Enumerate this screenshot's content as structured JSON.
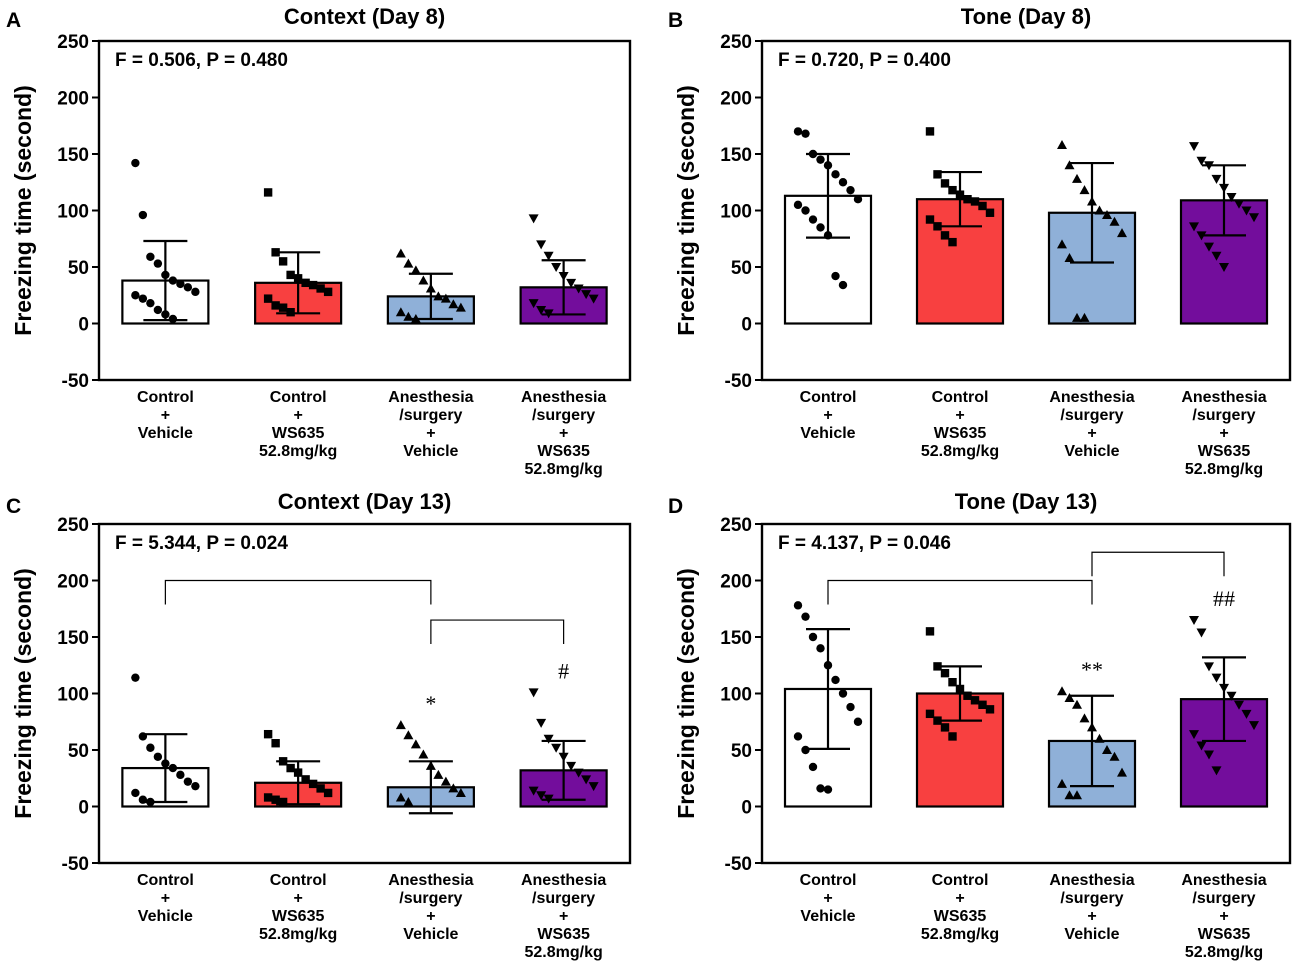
{
  "categories": [
    [
      "Control",
      "+",
      "Vehicle"
    ],
    [
      "Control",
      "+",
      "WS635",
      "52.8mg/kg"
    ],
    [
      "Anesthesia",
      "/surgery",
      "+",
      "Vehicle"
    ],
    [
      "Anesthesia",
      "/surgery",
      "+",
      "WS635",
      "52.8mg/kg"
    ]
  ],
  "group_colors": [
    "#ffffff",
    "#f84040",
    "#8fb0d8",
    "#730d9c"
  ],
  "group_markers": [
    "circle",
    "square",
    "triangle-up",
    "triangle-down"
  ],
  "chart_data": [
    {
      "type": "bar",
      "panel": "A",
      "title": "Context (Day 8)",
      "stat": "F = 0.506, P = 0.480",
      "ylabel": "Freezing time (second)",
      "ylim": [
        -50,
        250
      ],
      "yticks": [
        -50,
        0,
        50,
        100,
        150,
        200,
        250
      ],
      "means": [
        38,
        36,
        24,
        32
      ],
      "sd": [
        35,
        27,
        20,
        24
      ],
      "points": [
        [
          142,
          96,
          59,
          53,
          43,
          38,
          35,
          32,
          28,
          25,
          22,
          18,
          12,
          8,
          4
        ],
        [
          116,
          63,
          55,
          43,
          40,
          36,
          34,
          31,
          28,
          22,
          16,
          14,
          10
        ],
        [
          62,
          53,
          47,
          38,
          31,
          24,
          22,
          17,
          14,
          10,
          6,
          4
        ],
        [
          93,
          70,
          60,
          50,
          42,
          36,
          31,
          26,
          22,
          18,
          12,
          9
        ]
      ],
      "brackets": [],
      "annotations": [
        "",
        "",
        "",
        ""
      ]
    },
    {
      "type": "bar",
      "panel": "B",
      "title": "Tone (Day 8)",
      "stat": "F = 0.720, P = 0.400",
      "ylabel": "Freezing time (second)",
      "ylim": [
        -50,
        250
      ],
      "yticks": [
        -50,
        0,
        50,
        100,
        150,
        200,
        250
      ],
      "means": [
        113,
        110,
        98,
        109
      ],
      "sd": [
        37,
        24,
        44,
        31
      ],
      "points": [
        [
          170,
          168,
          150,
          145,
          140,
          132,
          125,
          118,
          110,
          105,
          100,
          92,
          85,
          78,
          42,
          34
        ],
        [
          170,
          132,
          124,
          118,
          114,
          110,
          108,
          104,
          98,
          92,
          86,
          78,
          72
        ],
        [
          158,
          140,
          128,
          118,
          108,
          100,
          96,
          90,
          80,
          70,
          58,
          5,
          5
        ],
        [
          157,
          144,
          140,
          128,
          120,
          112,
          106,
          100,
          94,
          86,
          78,
          68,
          60,
          50
        ]
      ],
      "brackets": [],
      "annotations": [
        "",
        "",
        "",
        ""
      ]
    },
    {
      "type": "bar",
      "panel": "C",
      "title": "Context (Day 13)",
      "stat": "F = 5.344, P = 0.024",
      "ylabel": "Freezing time (second)",
      "ylim": [
        -50,
        250
      ],
      "yticks": [
        -50,
        0,
        50,
        100,
        150,
        200,
        250
      ],
      "means": [
        34,
        21,
        17,
        32
      ],
      "sd": [
        30,
        19,
        23,
        26
      ],
      "points": [
        [
          114,
          62,
          52,
          44,
          38,
          34,
          28,
          22,
          18,
          12,
          6,
          4
        ],
        [
          64,
          56,
          40,
          34,
          30,
          24,
          20,
          16,
          12,
          8,
          6,
          4
        ],
        [
          72,
          63,
          55,
          46,
          36,
          28,
          22,
          16,
          12,
          8,
          4
        ],
        [
          101,
          74,
          60,
          52,
          44,
          36,
          30,
          24,
          18,
          14,
          10,
          7
        ]
      ],
      "brackets": [
        [
          0,
          2,
          200
        ],
        [
          2,
          3,
          165
        ]
      ],
      "annotations": [
        "",
        "",
        "*",
        "#"
      ]
    },
    {
      "type": "bar",
      "panel": "D",
      "title": "Tone (Day 13)",
      "stat": "F = 4.137, P = 0.046",
      "ylabel": "Freezing time (second)",
      "ylim": [
        -50,
        250
      ],
      "yticks": [
        -50,
        0,
        50,
        100,
        150,
        200,
        250
      ],
      "means": [
        104,
        100,
        58,
        95
      ],
      "sd": [
        53,
        24,
        40,
        37
      ],
      "points": [
        [
          178,
          168,
          150,
          140,
          125,
          112,
          100,
          88,
          75,
          62,
          50,
          35,
          16,
          15
        ],
        [
          155,
          124,
          118,
          110,
          104,
          98,
          94,
          90,
          86,
          82,
          76,
          70,
          62
        ],
        [
          102,
          96,
          90,
          78,
          70,
          60,
          50,
          44,
          30,
          20,
          10,
          10
        ],
        [
          165,
          154,
          124,
          114,
          105,
          98,
          90,
          82,
          72,
          64,
          54,
          46,
          32
        ]
      ],
      "brackets": [
        [
          0,
          2,
          200
        ],
        [
          2,
          3,
          225
        ]
      ],
      "annotations": [
        "",
        "",
        "**",
        "##"
      ]
    }
  ]
}
